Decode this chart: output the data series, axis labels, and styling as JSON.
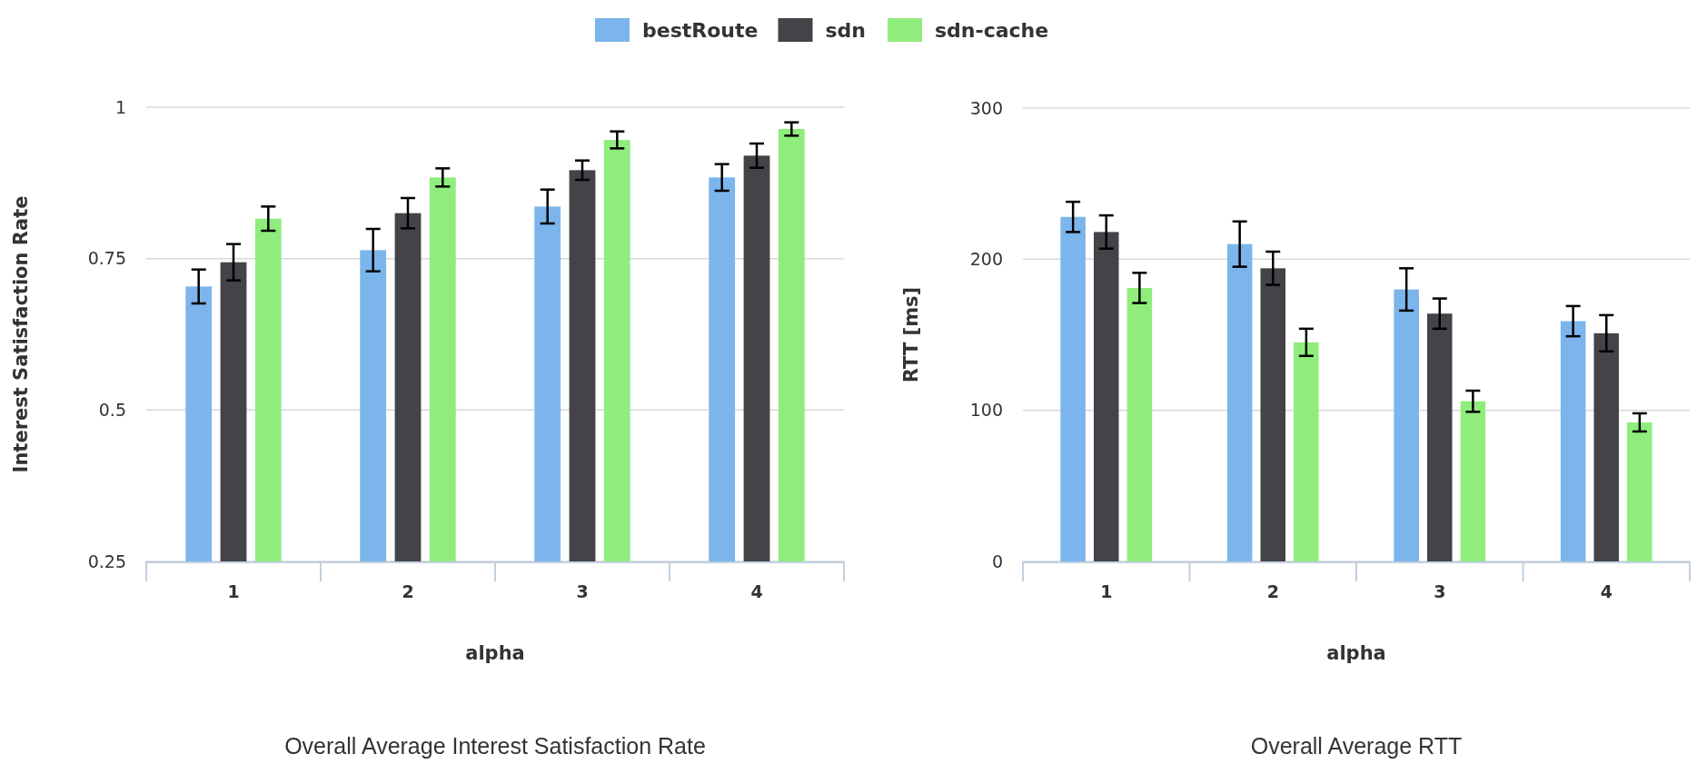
{
  "chart_data": [
    {
      "type": "bar",
      "title": "Overall Average Interest Satisfaction Rate",
      "xlabel": "alpha",
      "ylabel": "Interest Satisfaction Rate",
      "categories": [
        "1",
        "2",
        "3",
        "4"
      ],
      "series": [
        {
          "name": "bestRoute",
          "color": "#7cb5ec",
          "values": [
            0.704,
            0.764,
            0.836,
            0.884
          ],
          "errors": [
            0.028,
            0.035,
            0.028,
            0.022
          ]
        },
        {
          "name": "sdn",
          "color": "#434348",
          "values": [
            0.744,
            0.825,
            0.896,
            0.92
          ],
          "errors": [
            0.03,
            0.025,
            0.016,
            0.02
          ]
        },
        {
          "name": "sdn-cache",
          "color": "#90ed7d",
          "values": [
            0.816,
            0.884,
            0.946,
            0.964
          ],
          "errors": [
            0.02,
            0.015,
            0.014,
            0.011
          ]
        }
      ],
      "ylim": [
        0.25,
        1
      ],
      "yticks": [
        0.25,
        0.5,
        0.75,
        1
      ],
      "grid": "y",
      "legend": "top"
    },
    {
      "type": "bar",
      "title": "Overall Average RTT",
      "xlabel": "alpha",
      "ylabel": "RTT [ms]",
      "categories": [
        "1",
        "2",
        "3",
        "4"
      ],
      "series": [
        {
          "color": "#7cb5ec",
          "values": [
            228,
            210,
            180,
            159
          ],
          "errors": [
            10,
            15,
            14,
            10
          ]
        },
        {
          "color": "#434348",
          "values": [
            218,
            194,
            164,
            151
          ],
          "errors": [
            11,
            11,
            10,
            12
          ]
        },
        {
          "color": "#90ed7d",
          "values": [
            181,
            145,
            106,
            92
          ],
          "errors": [
            10,
            9,
            7,
            6
          ]
        }
      ],
      "ylim": [
        0,
        300
      ],
      "yticks": [
        0,
        100,
        200,
        300
      ],
      "grid": "y"
    }
  ]
}
